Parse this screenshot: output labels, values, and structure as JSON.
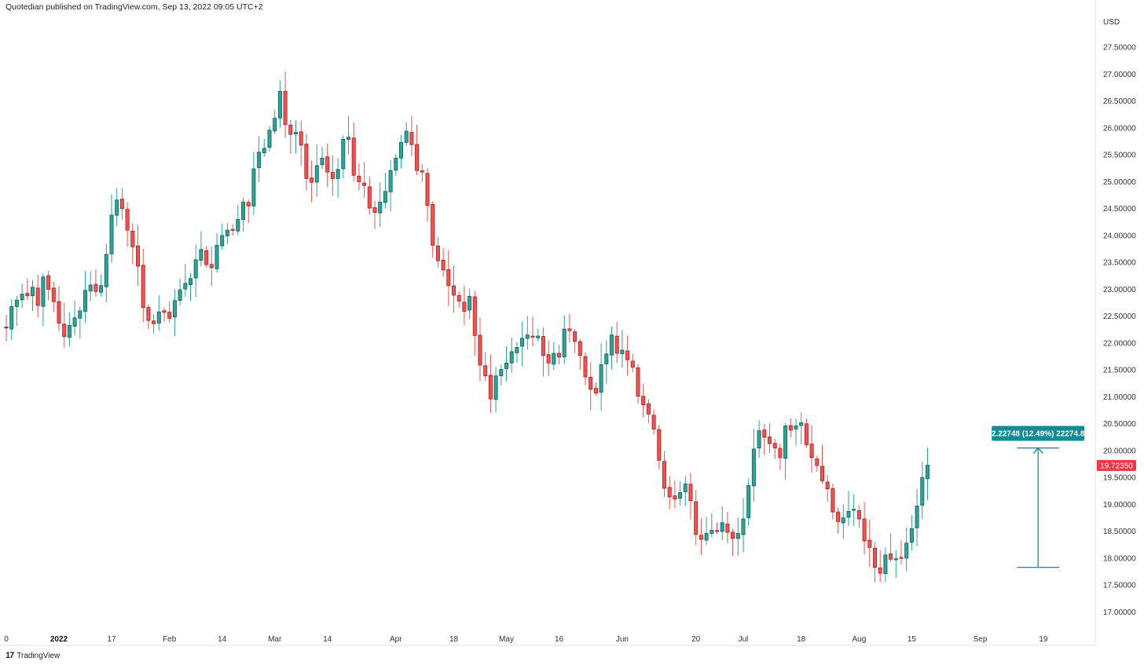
{
  "header": {
    "published": "Quotedian published on TradingView.com, Sep 13, 2022 09:05 UTC+2"
  },
  "branding": {
    "name": "TradingView",
    "logo_icon": "tradingview-logo-icon"
  },
  "colors": {
    "up": "#26a69a",
    "up_dark": "#1b5e59",
    "down": "#ef5350",
    "down_dark": "#b71c1c",
    "measure": "#138a97",
    "price_tag": "#f23645",
    "grid_axis": "#e0e3eb"
  },
  "chart_data": {
    "type": "candlestick",
    "currency": "USD",
    "ylim": [
      16.7,
      28.0
    ],
    "y_ticks": [
      "17.00000",
      "17.50000",
      "18.00000",
      "18.50000",
      "19.00000",
      "19.50000",
      "20.00000",
      "20.50000",
      "21.00000",
      "21.50000",
      "22.00000",
      "22.50000",
      "23.00000",
      "23.50000",
      "24.00000",
      "24.50000",
      "25.00000",
      "25.50000",
      "26.00000",
      "26.50000",
      "27.00000",
      "27.50000"
    ],
    "x_ticks": [
      {
        "label": "0",
        "bar": 0,
        "bold": false
      },
      {
        "label": "2022",
        "bar": 10,
        "bold": true
      },
      {
        "label": "17",
        "bar": 20,
        "bold": false
      },
      {
        "label": "Feb",
        "bar": 31,
        "bold": false
      },
      {
        "label": "14",
        "bar": 41,
        "bold": false
      },
      {
        "label": "Mar",
        "bar": 51,
        "bold": false
      },
      {
        "label": "14",
        "bar": 61,
        "bold": false
      },
      {
        "label": "Apr",
        "bar": 74,
        "bold": false
      },
      {
        "label": "18",
        "bar": 85,
        "bold": false
      },
      {
        "label": "May",
        "bar": 95,
        "bold": false
      },
      {
        "label": "16",
        "bar": 105,
        "bold": false
      },
      {
        "label": "Jun",
        "bar": 117,
        "bold": false
      },
      {
        "label": "20",
        "bar": 131,
        "bold": false
      },
      {
        "label": "Jul",
        "bar": 140,
        "bold": false
      },
      {
        "label": "18",
        "bar": 151,
        "bold": false
      },
      {
        "label": "Aug",
        "bar": 162,
        "bold": false
      },
      {
        "label": "15",
        "bar": 172,
        "bold": false
      },
      {
        "label": "Sep",
        "bar": 185,
        "bold": false
      },
      {
        "label": "19",
        "bar": 197,
        "bold": false
      }
    ],
    "closes": [
      22.28,
      22.68,
      22.8,
      22.91,
      22.88,
      23.04,
      22.7,
      23.23,
      23.0,
      22.77,
      22.37,
      22.12,
      22.33,
      22.47,
      22.6,
      22.98,
      23.08,
      22.96,
      23.07,
      23.65,
      24.38,
      24.66,
      24.5,
      24.1,
      23.79,
      23.43,
      22.66,
      22.42,
      22.36,
      22.58,
      22.57,
      22.46,
      22.79,
      22.99,
      23.11,
      23.2,
      23.55,
      23.74,
      23.46,
      23.4,
      23.82,
      24.0,
      24.1,
      24.11,
      24.3,
      24.62,
      24.55,
      25.24,
      25.55,
      25.62,
      25.96,
      26.18,
      26.68,
      26.06,
      25.88,
      25.92,
      25.68,
      25.06,
      24.99,
      25.3,
      25.44,
      25.18,
      25.06,
      25.23,
      25.79,
      25.83,
      25.12,
      25.0,
      24.93,
      24.51,
      24.43,
      24.62,
      24.82,
      25.21,
      25.44,
      25.73,
      25.94,
      25.69,
      25.21,
      25.18,
      24.56,
      23.82,
      23.53,
      23.36,
      23.07,
      22.89,
      22.78,
      22.59,
      22.87,
      22.14,
      21.59,
      21.39,
      20.96,
      21.39,
      21.51,
      21.63,
      21.84,
      21.92,
      22.09,
      22.15,
      22.11,
      22.13,
      21.77,
      21.63,
      21.81,
      21.74,
      22.26,
      22.23,
      22.03,
      21.77,
      21.37,
      21.14,
      21.07,
      21.6,
      21.8,
      22.15,
      21.81,
      21.87,
      21.69,
      21.55,
      21.01,
      20.85,
      20.68,
      20.4,
      19.82,
      19.3,
      19.14,
      19.1,
      19.22,
      19.38,
      19.07,
      18.44,
      18.35,
      18.46,
      18.52,
      18.5,
      18.66,
      18.48,
      18.37,
      18.46,
      18.73,
      19.35,
      20.03,
      20.37,
      20.25,
      20.13,
      20.05,
      19.87,
      20.46,
      20.38,
      20.46,
      20.52,
      20.11,
      19.87,
      19.72,
      19.44,
      19.29,
      18.86,
      18.68,
      18.75,
      18.87,
      18.91,
      18.73,
      18.32,
      18.2,
      17.83,
      17.72,
      18.06,
      17.98,
      17.99,
      18.01,
      18.28,
      18.55,
      18.97,
      19.5,
      19.73
    ],
    "measure": {
      "label": "2.22748 (12.49%) 22274.8",
      "from": 17.83,
      "to": 20.05,
      "bar_start": 192,
      "bar_end": 200,
      "arrow_bar": 196
    },
    "last_price": "19.72350",
    "last_price_value": 19.7235
  }
}
